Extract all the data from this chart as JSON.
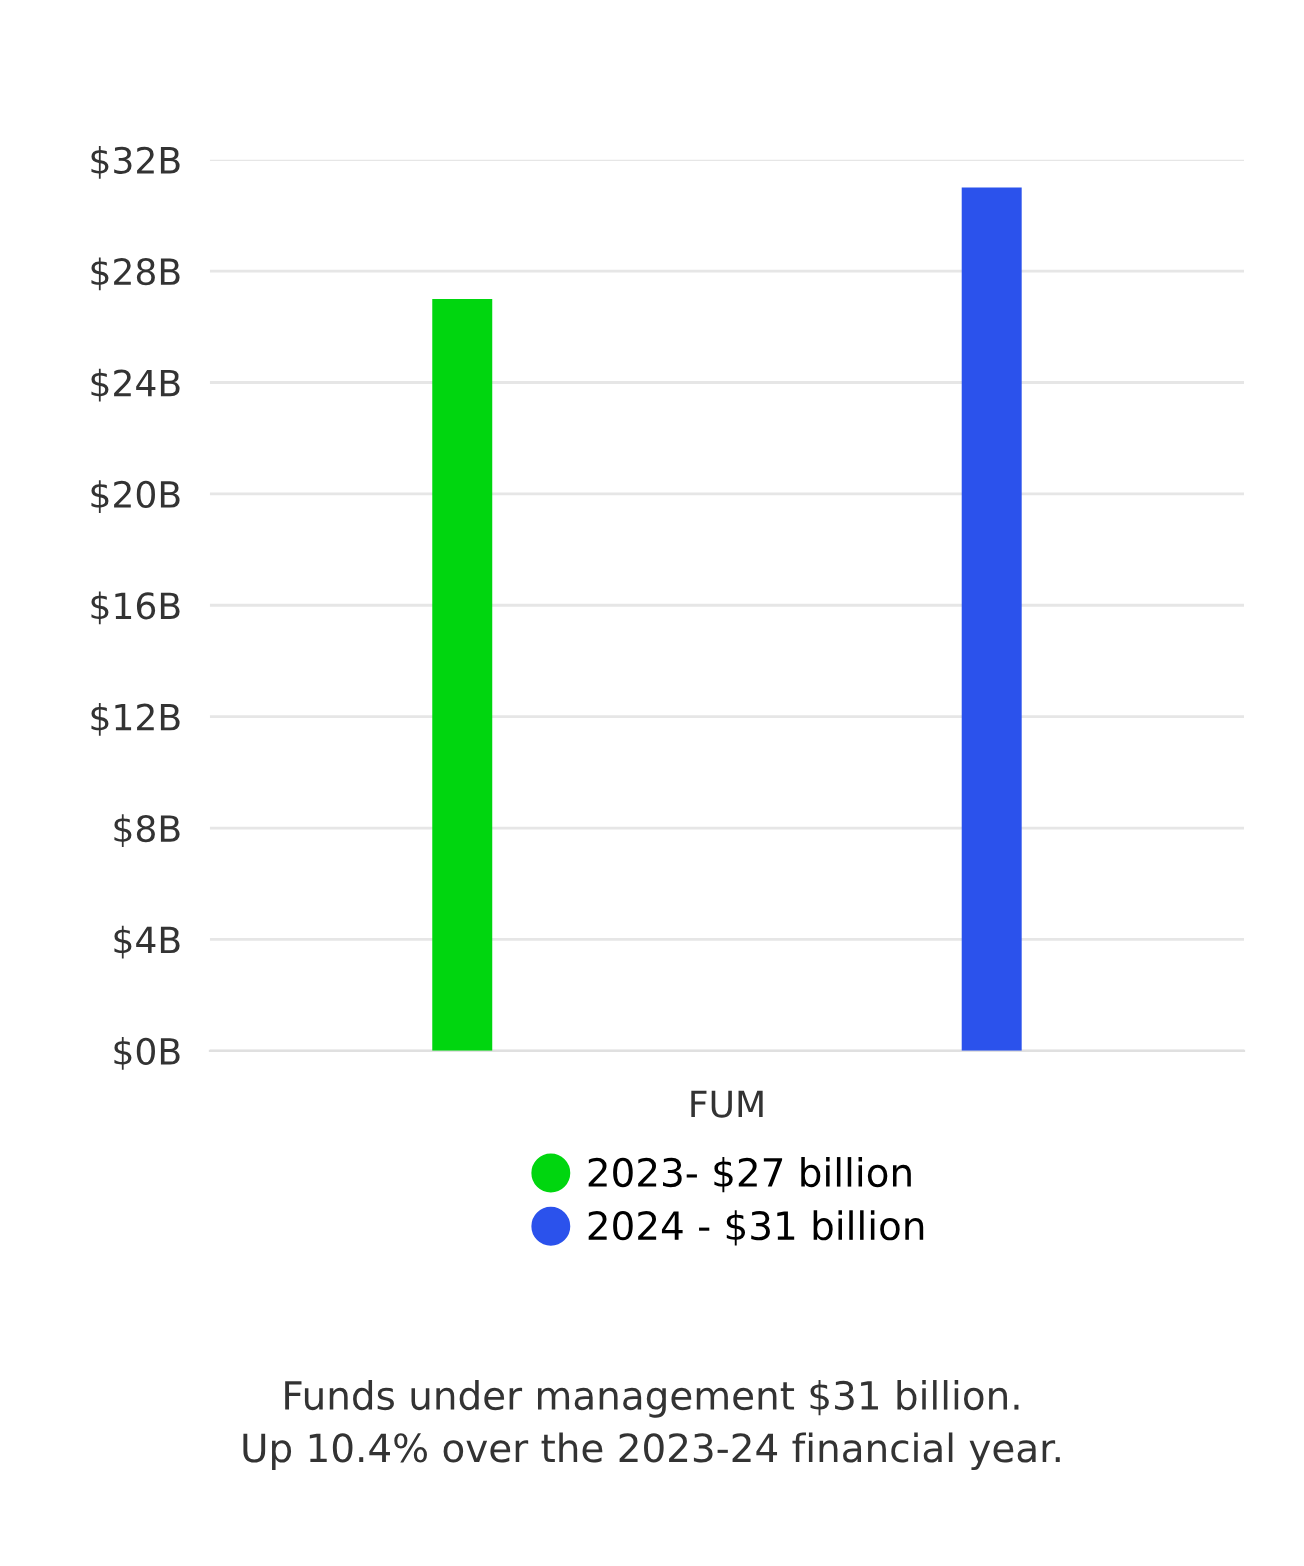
{
  "chart_data": {
    "type": "bar",
    "categories": [
      "FUM"
    ],
    "series": [
      {
        "name": "2023- $27 billion",
        "color": "#00d60f",
        "values": [
          27
        ]
      },
      {
        "name": "2024 - $31 billion",
        "color": "#2b52ec",
        "values": [
          31
        ]
      }
    ],
    "ylim": [
      0,
      32
    ],
    "yticks": [
      {
        "value": 0,
        "label": "$0B"
      },
      {
        "value": 4,
        "label": "$4B"
      },
      {
        "value": 8,
        "label": "$8B"
      },
      {
        "value": 12,
        "label": "$12B"
      },
      {
        "value": 16,
        "label": "$16B"
      },
      {
        "value": 20,
        "label": "$20B"
      },
      {
        "value": 24,
        "label": "$24B"
      },
      {
        "value": 28,
        "label": "$28B"
      },
      {
        "value": 32,
        "label": "$32B"
      }
    ],
    "grid": "y",
    "legend": "bottom",
    "annotations": [
      "Funds under management $31 billion.\nUp 10.4% over the 2023-24 financial year."
    ]
  }
}
